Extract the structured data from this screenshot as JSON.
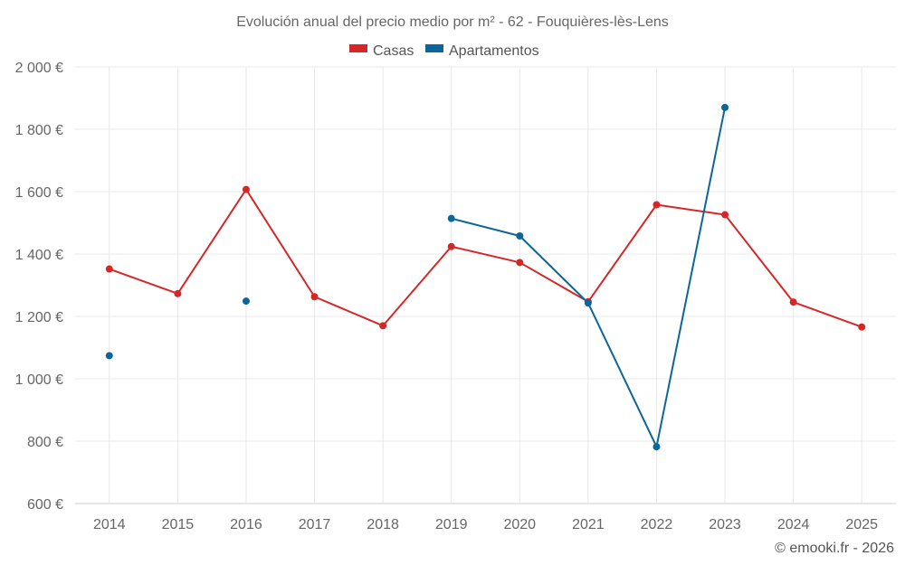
{
  "chart_data": {
    "type": "line",
    "title": "Evolución anual del precio medio por m² - 62 - Fouquières-lès-Lens",
    "categories": [
      "2014",
      "2015",
      "2016",
      "2017",
      "2018",
      "2019",
      "2020",
      "2021",
      "2022",
      "2023",
      "2024",
      "2025"
    ],
    "series": [
      {
        "name": "Casas",
        "color": "#d62728",
        "values": [
          1352,
          1273,
          1607,
          1263,
          1170,
          1424,
          1373,
          1247,
          1558,
          1526,
          1246,
          1166
        ]
      },
      {
        "name": "Apartamentos",
        "color": "#0b6699",
        "values": [
          1074,
          null,
          1249,
          null,
          null,
          1514,
          1458,
          1243,
          782,
          1870,
          null,
          null
        ]
      }
    ],
    "ylim": [
      600,
      2000
    ],
    "yticks": [
      600,
      800,
      1000,
      1200,
      1400,
      1600,
      1800,
      2000
    ],
    "ytick_labels": [
      "600 €",
      "800 €",
      "1 000 €",
      "1 200 €",
      "1 400 €",
      "1 600 €",
      "1 800 €",
      "2 000 €"
    ],
    "xlabel": "",
    "ylabel": "",
    "legend_position": "top-center",
    "grid": true
  },
  "credit": "© emooki.fr - 2026"
}
